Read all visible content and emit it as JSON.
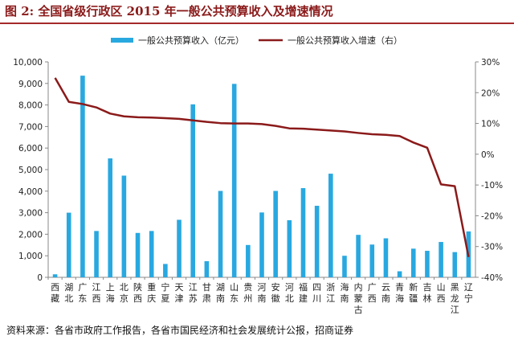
{
  "title": "图 2:  全国省级行政区 2015 年一般公共预算收入及增速情况",
  "source": "资料来源：各省市政府工作报告，各省市国民经济和社会发展统计公报，招商证券",
  "colors": {
    "bar": "#29a8e0",
    "line": "#8b1a1a",
    "title": "#8b1a1a"
  },
  "chart_data": {
    "type": "bar",
    "title": "",
    "xlabel": "",
    "ylabel": "",
    "categories": [
      "西藏",
      "湖北",
      "广东",
      "江西",
      "上海",
      "北京",
      "陕西",
      "重庆",
      "宁夏",
      "天津",
      "江苏",
      "甘肃",
      "湖南",
      "山东",
      "贵州",
      "河南",
      "安徽",
      "河北",
      "福建",
      "四川",
      "浙江",
      "海南",
      "内蒙古",
      "广西",
      "云南",
      "青海",
      "新疆",
      "吉林",
      "山西",
      "黑龙江",
      "辽宁"
    ],
    "ylim": [
      0,
      10000
    ],
    "y2lim": [
      -40,
      30
    ],
    "yticks": [
      "0",
      "1,000",
      "2,000",
      "3,000",
      "4,000",
      "5,000",
      "6,000",
      "7,000",
      "8,000",
      "9,000",
      "10,000"
    ],
    "y2ticks": [
      "-40%",
      "-30%",
      "-20%",
      "-10%",
      "0%",
      "10%",
      "20%",
      "30%"
    ],
    "legend_position": "top",
    "series": [
      {
        "name": "一般公共预算收入（亿元）",
        "type": "bar",
        "axis": "left",
        "values": [
          140,
          3000,
          9360,
          2150,
          5520,
          4720,
          2060,
          2150,
          620,
          2670,
          8030,
          750,
          4010,
          8980,
          1500,
          3010,
          4010,
          2650,
          4140,
          3320,
          4810,
          1000,
          1970,
          1520,
          1810,
          280,
          1330,
          1230,
          1640,
          1170,
          2130
        ]
      },
      {
        "name": "一般公共预算收入增速（右）",
        "type": "line",
        "axis": "right",
        "values": [
          24.8,
          17.0,
          16.3,
          15.2,
          13.2,
          12.3,
          12.0,
          11.9,
          11.7,
          11.5,
          11.0,
          10.5,
          10.1,
          10.0,
          10.0,
          9.8,
          9.2,
          8.4,
          8.3,
          8.0,
          7.7,
          7.4,
          6.9,
          6.5,
          6.3,
          5.9,
          3.8,
          2.1,
          -9.8,
          -10.4,
          -33.4
        ]
      }
    ]
  }
}
